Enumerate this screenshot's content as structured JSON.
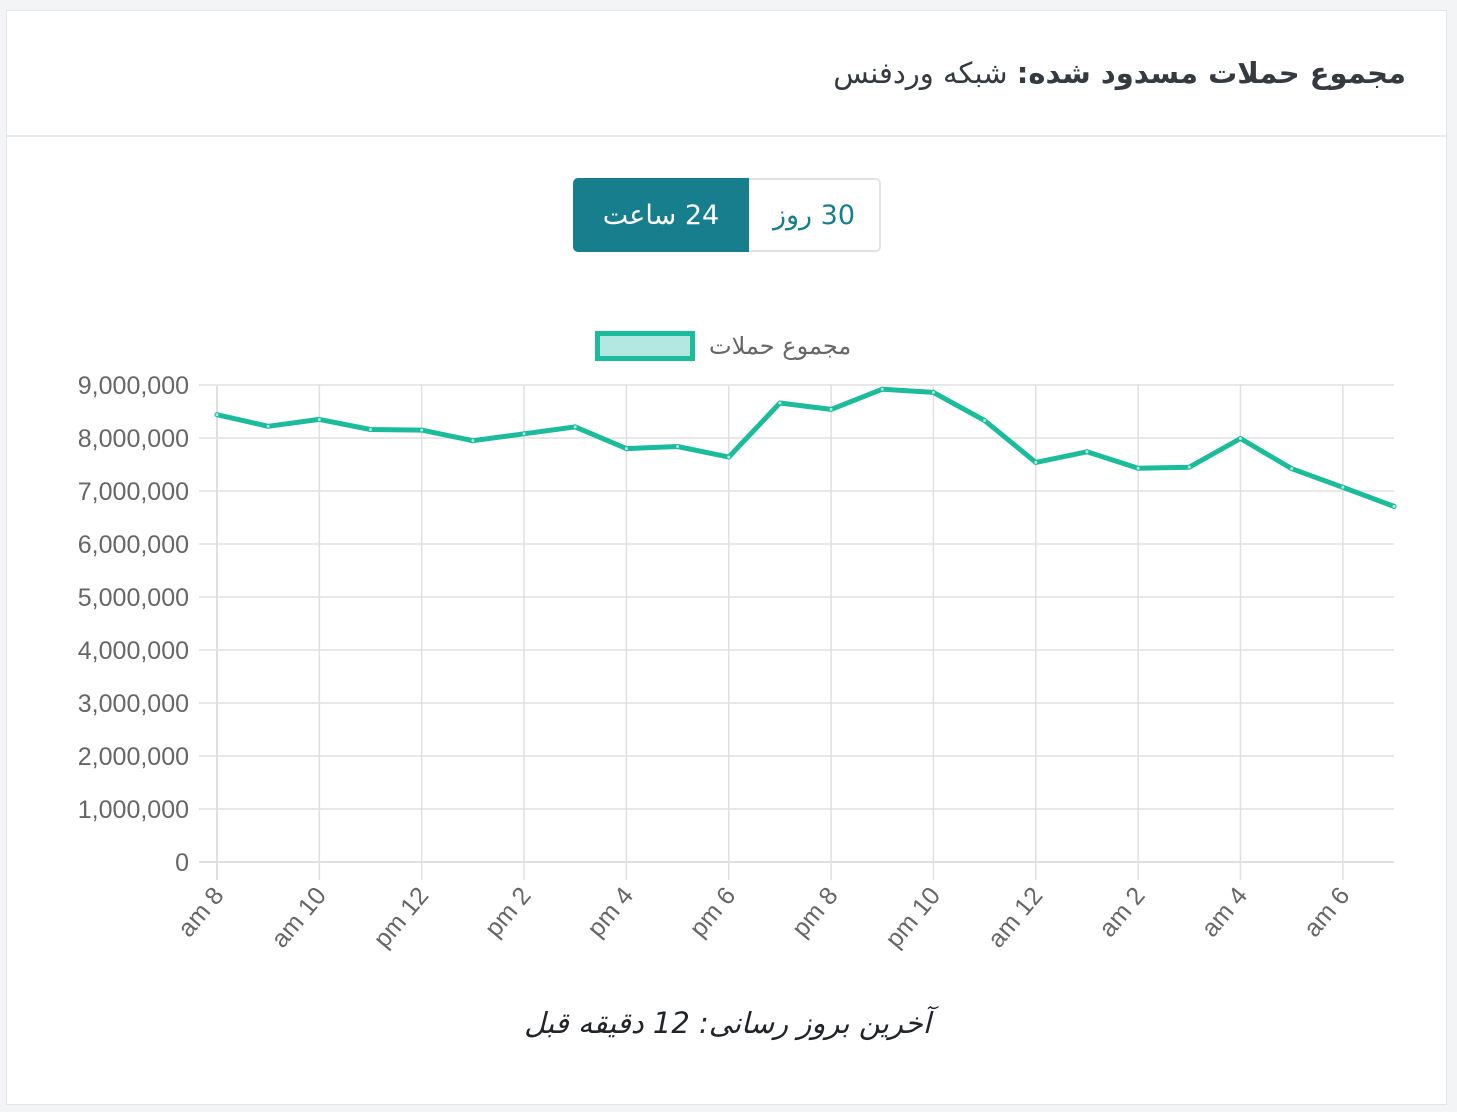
{
  "card": {
    "title_bold": "مجموع حملات مسدود شده:",
    "title_rest": "شبکه وردفنس"
  },
  "range_buttons": {
    "active_label": "24 ساعت",
    "inactive_label": "30 روز"
  },
  "footer": {
    "updated_label": "آخرین بروز رسانی:",
    "updated_value": "12 دقیقه قبل"
  },
  "colors": {
    "line": "#1abc9c",
    "legend_fill": "#b3e8e2",
    "button_active": "#167e8c",
    "grid": "#e0e0e0"
  },
  "chart_data": {
    "type": "line",
    "legend_position": "top",
    "grid": true,
    "ylim": [
      0,
      9000000
    ],
    "y_ticks": [
      "9,000,000",
      "8,000,000",
      "7,000,000",
      "6,000,000",
      "5,000,000",
      "4,000,000",
      "3,000,000",
      "2,000,000",
      "1,000,000",
      "0"
    ],
    "x": [
      "am 8",
      "am 9",
      "am 10",
      "am 11",
      "pm 12",
      "pm 1",
      "pm 2",
      "pm 3",
      "pm 4",
      "pm 5",
      "pm 6",
      "pm 7",
      "pm 8",
      "pm 9",
      "pm 10",
      "pm 11",
      "am 12",
      "am 1",
      "am 2",
      "am 3",
      "am 4",
      "am 5",
      "am 6",
      "am 7"
    ],
    "x_tick_labels": [
      "am 8",
      "am 10",
      "pm 12",
      "pm 2",
      "pm 4",
      "pm 6",
      "pm 8",
      "pm 10",
      "am 12",
      "am 2",
      "am 4",
      "am 6"
    ],
    "series": [
      {
        "name": "مجموع حملات",
        "values": [
          8440000,
          8220000,
          8350000,
          8160000,
          8150000,
          7950000,
          8080000,
          8210000,
          7800000,
          7840000,
          7640000,
          8660000,
          8540000,
          8920000,
          8860000,
          8330000,
          7540000,
          7740000,
          7430000,
          7450000,
          7990000,
          7420000,
          7070000,
          6710000
        ]
      }
    ]
  }
}
